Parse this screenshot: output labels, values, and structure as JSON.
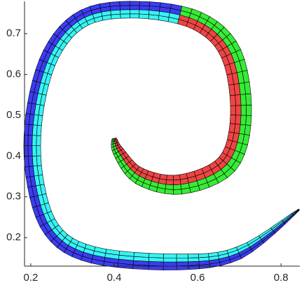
{
  "chart_data": {
    "type": "mesh",
    "xlim": [
      0.185,
      0.845
    ],
    "xticks": [
      0.2,
      0.4,
      0.6,
      0.8
    ],
    "ylim": [
      0.13,
      0.779
    ],
    "yticks": [
      0.2,
      0.3,
      0.4,
      0.5,
      0.6,
      0.7
    ],
    "colors": [
      "#3c3cf2",
      "#36f4f4",
      "#36ec36",
      "#f04444"
    ]
  }
}
